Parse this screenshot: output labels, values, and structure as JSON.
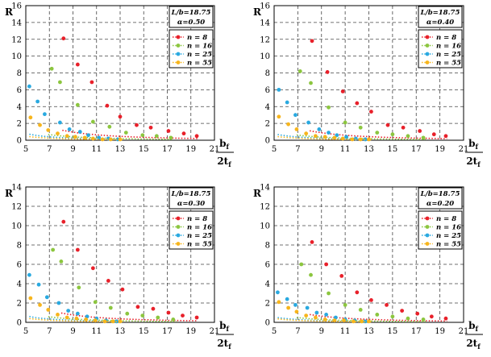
{
  "colors": {
    "n8": "#e8202a",
    "n16": "#8cc63f",
    "n25": "#29a9e0",
    "n55": "#f7b51c"
  },
  "chart_data": [
    {
      "type": "scatter",
      "xlim": [
        5,
        21
      ],
      "ylim": [
        0,
        16
      ],
      "xticks": [
        5,
        7,
        9,
        11,
        13,
        15,
        17,
        19,
        21
      ],
      "yticks": [
        0,
        2,
        4,
        6,
        8,
        10,
        12,
        14,
        16
      ],
      "ylabel": "R",
      "xlabel_num": "b",
      "xlabel_den": "2t",
      "xlabel_sub": "f",
      "annotation_line1": "L/b=18.75",
      "annotation_line2": "α=0.50",
      "grid": true,
      "legend_position": "top-right",
      "series": [
        {
          "name": "n = 8",
          "color_key": "n8",
          "x": [
            8.2,
            9.4,
            10.6,
            11.9,
            13.0,
            14.4,
            15.6,
            17.1,
            18.4,
            19.5
          ],
          "y": [
            12.1,
            9.0,
            6.9,
            4.1,
            2.8,
            1.8,
            1.5,
            1.1,
            0.8,
            0.5
          ],
          "curve_k": 78,
          "curve_x": [
            8.1,
            19.6
          ]
        },
        {
          "name": "n = 16",
          "color_key": "n16",
          "x": [
            7.2,
            7.9,
            9.4,
            10.7,
            12.1,
            13.5,
            14.9,
            16.1,
            17.3
          ],
          "y": [
            8.5,
            6.9,
            4.2,
            2.2,
            1.6,
            0.9,
            0.6,
            0.5,
            0.3
          ],
          "curve_k": 33,
          "curve_x": [
            6.9,
            17.5
          ]
        },
        {
          "name": "n = 25",
          "color_key": "n25",
          "x": [
            5.3,
            6.0,
            6.6,
            7.9,
            8.7,
            9.6,
            10.3,
            11.2,
            12.0,
            12.8
          ],
          "y": [
            6.4,
            4.6,
            3.1,
            2.1,
            1.3,
            1.0,
            0.6,
            0.3,
            0.2,
            0.1
          ],
          "curve_k": 20,
          "curve_x": [
            5.3,
            13.0
          ]
        },
        {
          "name": "n = 55",
          "color_key": "n55",
          "x": [
            5.4,
            6.2,
            6.9,
            7.7,
            8.5,
            9.2,
            10.0,
            10.7,
            11.5,
            12.2,
            13.0
          ],
          "y": [
            2.7,
            1.8,
            1.2,
            0.8,
            0.5,
            0.4,
            0.3,
            0.2,
            0.1,
            0.1,
            0.1
          ],
          "curve_k": 12,
          "curve_x": [
            5.3,
            13.2
          ]
        }
      ]
    },
    {
      "type": "scatter",
      "xlim": [
        5,
        21
      ],
      "ylim": [
        0,
        16
      ],
      "xticks": [
        5,
        7,
        9,
        11,
        13,
        15,
        17,
        19,
        21
      ],
      "yticks": [
        0,
        2,
        4,
        6,
        8,
        10,
        12,
        14,
        16
      ],
      "ylabel": "R",
      "xlabel_num": "b",
      "xlabel_den": "2t",
      "xlabel_sub": "f",
      "annotation_line1": "L/b=18.75",
      "annotation_line2": "α=0.40",
      "grid": true,
      "legend_position": "top-right",
      "series": [
        {
          "name": "n = 8",
          "color_key": "n8",
          "x": [
            8.2,
            9.5,
            10.8,
            12.0,
            13.2,
            14.6,
            15.9,
            17.3,
            18.5,
            19.5
          ],
          "y": [
            11.8,
            8.1,
            5.8,
            4.4,
            3.4,
            1.8,
            1.5,
            1.1,
            0.7,
            0.5
          ],
          "curve_k": 72,
          "curve_x": [
            8.0,
            19.6
          ]
        },
        {
          "name": "n = 16",
          "color_key": "n16",
          "x": [
            7.2,
            8.1,
            9.6,
            11.0,
            12.3,
            13.7,
            15.0,
            16.3,
            17.6
          ],
          "y": [
            8.2,
            6.8,
            3.9,
            2.1,
            1.5,
            0.9,
            0.7,
            0.5,
            0.3
          ],
          "curve_k": 30,
          "curve_x": [
            6.9,
            17.8
          ]
        },
        {
          "name": "n = 25",
          "color_key": "n25",
          "x": [
            5.4,
            6.1,
            6.8,
            7.9,
            8.8,
            9.6,
            10.3,
            11.1,
            11.9,
            12.7
          ],
          "y": [
            6.0,
            4.5,
            3.0,
            2.1,
            1.3,
            0.9,
            0.6,
            0.4,
            0.2,
            0.1
          ],
          "curve_k": 19,
          "curve_x": [
            5.3,
            13.0
          ]
        },
        {
          "name": "n = 55",
          "color_key": "n55",
          "x": [
            5.4,
            6.2,
            6.9,
            7.7,
            8.5,
            9.3,
            10.1,
            10.8,
            11.6,
            12.3,
            13.0
          ],
          "y": [
            2.8,
            1.9,
            1.3,
            0.8,
            0.5,
            0.4,
            0.3,
            0.2,
            0.1,
            0.1,
            0.1
          ],
          "curve_k": 12,
          "curve_x": [
            5.3,
            13.2
          ]
        }
      ]
    },
    {
      "type": "scatter",
      "xlim": [
        5,
        21
      ],
      "ylim": [
        0,
        14
      ],
      "xticks": [
        5,
        7,
        9,
        11,
        13,
        15,
        17,
        19,
        21
      ],
      "yticks": [
        0,
        2,
        4,
        6,
        8,
        10,
        12,
        14
      ],
      "ylabel": "R",
      "xlabel_num": "b",
      "xlabel_den": "2t",
      "xlabel_sub": "f",
      "annotation_line1": "L/b=18.75",
      "annotation_line2": "α=0.30",
      "grid": true,
      "legend_position": "top-right",
      "series": [
        {
          "name": "n = 8",
          "color_key": "n8",
          "x": [
            8.2,
            9.4,
            10.7,
            12.0,
            13.2,
            14.5,
            15.8,
            17.1,
            18.3,
            19.5
          ],
          "y": [
            10.4,
            7.5,
            5.6,
            4.3,
            3.4,
            1.6,
            1.4,
            1.0,
            0.7,
            0.5
          ],
          "curve_k": 62,
          "curve_x": [
            8.0,
            19.6
          ]
        },
        {
          "name": "n = 16",
          "color_key": "n16",
          "x": [
            7.3,
            8.0,
            9.5,
            10.9,
            12.2,
            13.6,
            14.9,
            16.2,
            17.5
          ],
          "y": [
            7.5,
            6.3,
            3.6,
            2.1,
            1.5,
            0.9,
            0.7,
            0.5,
            0.3
          ],
          "curve_k": 28,
          "curve_x": [
            6.9,
            17.8
          ]
        },
        {
          "name": "n = 25",
          "color_key": "n25",
          "x": [
            5.3,
            6.1,
            6.8,
            7.8,
            8.6,
            9.4,
            10.2,
            11.0,
            11.8,
            12.7
          ],
          "y": [
            4.9,
            3.9,
            2.6,
            2.0,
            1.2,
            0.9,
            0.6,
            0.4,
            0.2,
            0.1
          ],
          "curve_k": 17,
          "curve_x": [
            5.3,
            13.0
          ]
        },
        {
          "name": "n = 55",
          "color_key": "n55",
          "x": [
            5.4,
            6.2,
            6.9,
            7.7,
            8.5,
            9.3,
            10.1,
            10.9,
            11.7,
            12.4,
            13.0
          ],
          "y": [
            2.5,
            1.8,
            1.3,
            0.8,
            0.5,
            0.4,
            0.3,
            0.2,
            0.1,
            0.1,
            0.1
          ],
          "curve_k": 11,
          "curve_x": [
            5.3,
            13.2
          ]
        }
      ]
    },
    {
      "type": "scatter",
      "xlim": [
        5,
        21
      ],
      "ylim": [
        0,
        14
      ],
      "xticks": [
        5,
        7,
        9,
        11,
        13,
        15,
        17,
        19,
        21
      ],
      "yticks": [
        0,
        2,
        4,
        6,
        8,
        10,
        12,
        14
      ],
      "ylabel": "R",
      "xlabel_num": "b",
      "xlabel_den": "2t",
      "xlabel_sub": "f",
      "annotation_line1": "L/b=18.75",
      "annotation_line2": "α=0.20",
      "grid": true,
      "legend_position": "top-right",
      "series": [
        {
          "name": "n = 8",
          "color_key": "n8",
          "x": [
            8.2,
            9.4,
            10.7,
            12.0,
            13.2,
            14.5,
            15.8,
            17.1,
            18.3,
            19.5
          ],
          "y": [
            8.3,
            6.0,
            4.8,
            3.1,
            2.3,
            1.8,
            1.2,
            0.9,
            0.6,
            0.4
          ],
          "curve_k": 52,
          "curve_x": [
            8.0,
            19.6
          ]
        },
        {
          "name": "n = 16",
          "color_key": "n16",
          "x": [
            7.3,
            8.1,
            9.6,
            11.0,
            12.3,
            13.7,
            15.0,
            16.3,
            17.6
          ],
          "y": [
            6.0,
            4.9,
            3.0,
            1.8,
            1.3,
            0.8,
            0.6,
            0.4,
            0.3
          ],
          "curve_k": 24,
          "curve_x": [
            6.9,
            17.8
          ]
        },
        {
          "name": "n = 25",
          "color_key": "n25",
          "x": [
            5.3,
            6.1,
            6.8,
            7.8,
            8.6,
            9.4,
            10.2,
            11.0,
            11.8,
            12.7
          ],
          "y": [
            3.1,
            2.4,
            1.8,
            1.5,
            1.0,
            0.8,
            0.5,
            0.3,
            0.2,
            0.1
          ],
          "curve_k": 14,
          "curve_x": [
            5.3,
            13.0
          ]
        },
        {
          "name": "n = 55",
          "color_key": "n55",
          "x": [
            5.4,
            6.2,
            6.9,
            7.7,
            8.5,
            9.3,
            10.1,
            10.9,
            11.7,
            12.4,
            13.0
          ],
          "y": [
            2.1,
            1.5,
            1.1,
            0.7,
            0.5,
            0.3,
            0.2,
            0.2,
            0.1,
            0.1,
            0.1
          ],
          "curve_k": 10,
          "curve_x": [
            5.3,
            13.2
          ]
        }
      ]
    }
  ]
}
